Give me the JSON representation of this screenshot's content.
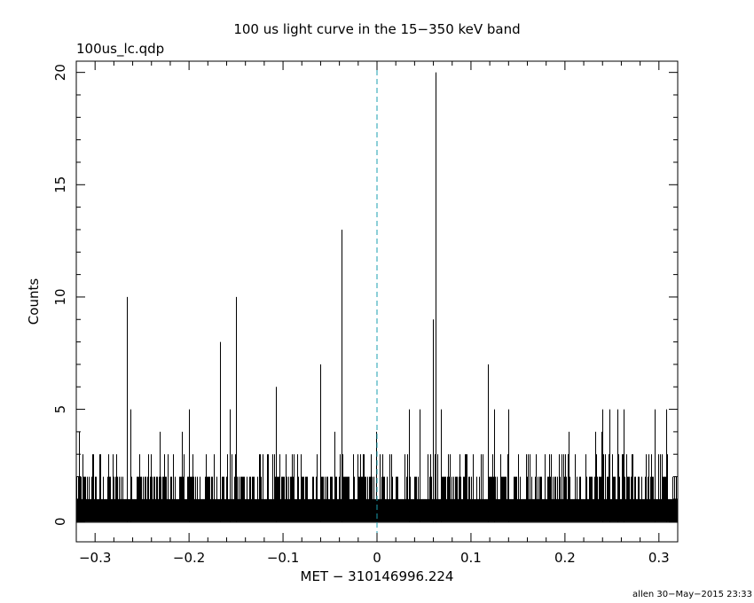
{
  "chart_data": {
    "type": "bar",
    "title": "100 us light curve in the 15−350 keV band",
    "subtitle": "100us_lc.qdp",
    "xlabel": "MET − 310146996.224",
    "ylabel": "Counts",
    "xlim": [
      -0.32,
      0.32
    ],
    "ylim": [
      -0.9,
      20.5
    ],
    "x_ticks": [
      -0.3,
      -0.2,
      -0.1,
      0,
      0.1,
      0.2,
      0.3
    ],
    "x_tick_labels": [
      "−0.3",
      "−0.2",
      "−0.1",
      "0",
      "0.1",
      "0.2",
      "0.3"
    ],
    "y_ticks": [
      0,
      5,
      10,
      15,
      20
    ],
    "y_tick_labels": [
      "0",
      "5",
      "10",
      "15",
      "20"
    ],
    "bin_width": 0.0001,
    "trigger_line": {
      "x": 0,
      "color": "#1a9fb0",
      "style": "dashed"
    },
    "series": [
      {
        "values": [
          {
            "x": -0.2665,
            "y": 10
          },
          {
            "x": -0.262,
            "y": 5
          },
          {
            "x": -0.2,
            "y": 5
          },
          {
            "x": -0.167,
            "y": 8
          },
          {
            "x": -0.157,
            "y": 5
          },
          {
            "x": -0.15,
            "y": 10
          },
          {
            "x": -0.108,
            "y": 6
          },
          {
            "x": -0.06,
            "y": 7
          },
          {
            "x": -0.038,
            "y": 13
          },
          {
            "x": 0.034,
            "y": 5
          },
          {
            "x": 0.045,
            "y": 5
          },
          {
            "x": 0.059,
            "y": 9
          },
          {
            "x": 0.062,
            "y": 20
          },
          {
            "x": 0.068,
            "y": 5
          },
          {
            "x": 0.118,
            "y": 7
          },
          {
            "x": 0.125,
            "y": 5
          },
          {
            "x": 0.14,
            "y": 5
          },
          {
            "x": 0.24,
            "y": 5
          },
          {
            "x": 0.247,
            "y": 5
          },
          {
            "x": 0.256,
            "y": 5
          },
          {
            "x": 0.262,
            "y": 5
          },
          {
            "x": 0.295,
            "y": 5
          },
          {
            "x": 0.308,
            "y": 5
          }
        ]
      }
    ],
    "background_level": {
      "typical_max": 3,
      "rare_max": 4
    },
    "footer": "allen 30−May−2015 23:33",
    "colors": {
      "data": "#000000",
      "frame": "#000000",
      "trigger": "#1a9fb0"
    }
  }
}
